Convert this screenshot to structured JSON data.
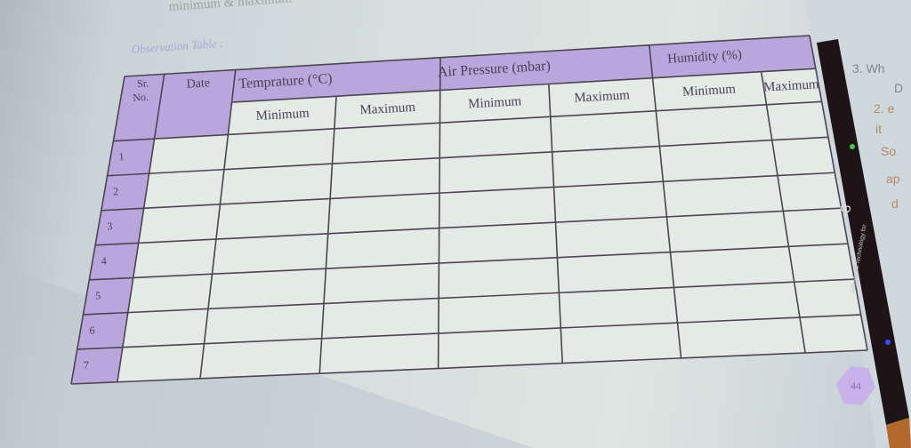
{
  "page": {
    "top_text": "minimum & maximum",
    "caption": "Observation Table :",
    "page_number": "44"
  },
  "table": {
    "headers": {
      "sr_no": [
        "Sr.",
        "No."
      ],
      "date": "Date",
      "temperature": "Temprature (°C)",
      "air_pressure": "Air Pressure (mbar)",
      "humidity": "Humidity (%)",
      "sub": [
        "Minimum",
        "Maximum",
        "Minimum",
        "Maximum",
        "Minimum",
        "Maximum"
      ]
    },
    "rows": [
      "1",
      "2",
      "3",
      "4",
      "5",
      "6",
      "7"
    ]
  },
  "margin_notes": [
    "3.  Wh",
    "D",
    "2. e",
    "it",
    "So",
    "ap",
    "d"
  ],
  "pen": {
    "label": "Advanced Technology for",
    "number": "3"
  },
  "colors": {
    "header_purple": "#b9a6dc",
    "line": "#4d4452",
    "pen": "#1e1418"
  }
}
